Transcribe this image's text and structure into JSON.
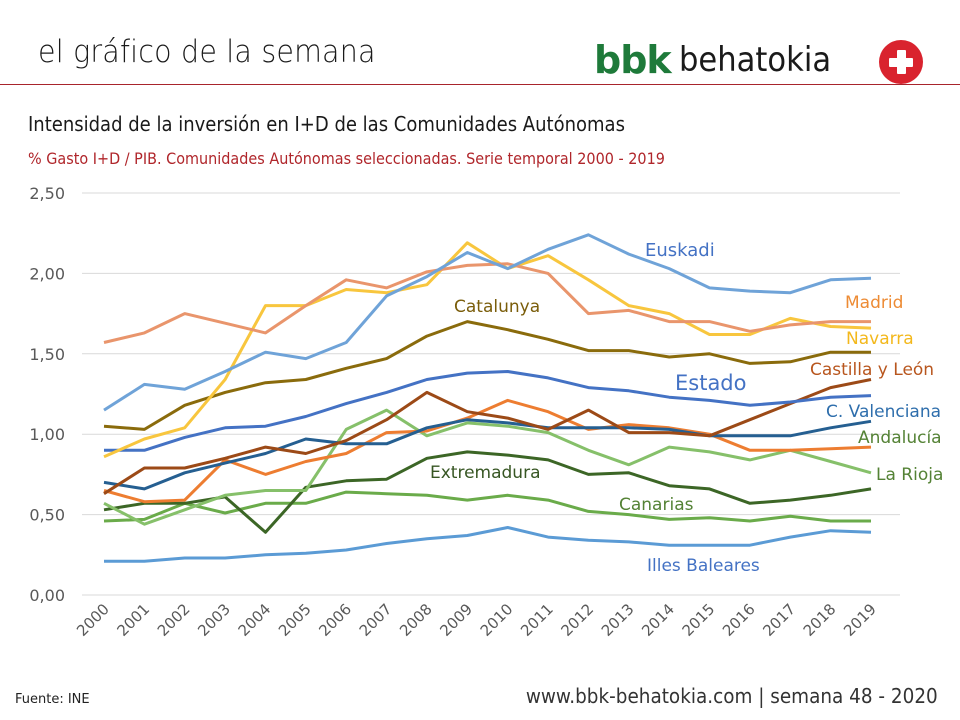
{
  "header": {
    "title": "el gráfico de la semana",
    "logo_bbk": "bbk",
    "logo_name": "behatokia",
    "logo_icon": "plus-cross-icon"
  },
  "footer": {
    "source": "Fuente:  INE",
    "web": "www.bbk-behatokia.com | semana 48 - 2020"
  },
  "chart_data": {
    "type": "line",
    "title": "Intensidad de la inversión en I+D de las Comunidades Autónomas",
    "subtitle": "% Gasto I+D / PIB. Comunidades Autónomas seleccionadas. Serie temporal 2000 - 2019",
    "xlabel": "",
    "ylabel": "",
    "x": [
      "2000",
      "2001",
      "2002",
      "2003",
      "2004",
      "2005",
      "2006",
      "2007",
      "2008",
      "2009",
      "2010",
      "2011",
      "2012",
      "2013",
      "2014",
      "2015",
      "2016",
      "2017",
      "2018",
      "2019"
    ],
    "ylim": [
      0,
      2.5
    ],
    "yticks": [
      "0,00",
      "0,50",
      "1,00",
      "1,50",
      "2,00",
      "2,50"
    ],
    "ytick_values": [
      0,
      0.5,
      1,
      1.5,
      2,
      2.5
    ],
    "grid": true,
    "legend": "inline labels",
    "series": [
      {
        "name": "Euskadi",
        "color": "#6fa3d8",
        "label_color": "#4472c4",
        "values": [
          1.15,
          1.31,
          1.28,
          1.39,
          1.51,
          1.47,
          1.57,
          1.86,
          1.98,
          2.13,
          2.03,
          2.15,
          2.24,
          2.12,
          2.03,
          1.91,
          1.89,
          1.88,
          1.96,
          1.97
        ]
      },
      {
        "name": "Madrid",
        "color": "#e9956c",
        "label_color": "#ed8b34",
        "values": [
          1.57,
          1.63,
          1.75,
          1.69,
          1.63,
          1.8,
          1.96,
          1.91,
          2.01,
          2.05,
          2.06,
          2.0,
          1.75,
          1.77,
          1.7,
          1.7,
          1.64,
          1.68,
          1.7,
          1.7
        ]
      },
      {
        "name": "Navarra",
        "color": "#f8c63e",
        "label_color": "#f3b81c",
        "values": [
          0.86,
          0.97,
          1.04,
          1.34,
          1.8,
          1.8,
          1.9,
          1.88,
          1.93,
          2.19,
          2.03,
          2.11,
          1.96,
          1.8,
          1.75,
          1.62,
          1.62,
          1.72,
          1.67,
          1.66
        ]
      },
      {
        "name": "Catalunya",
        "color": "#8a6b0c",
        "label_color": "#7a5d0a",
        "values": [
          1.05,
          1.03,
          1.18,
          1.26,
          1.32,
          1.34,
          1.41,
          1.47,
          1.61,
          1.7,
          1.65,
          1.59,
          1.52,
          1.52,
          1.48,
          1.5,
          1.44,
          1.45,
          1.51,
          1.51
        ]
      },
      {
        "name": "Estado",
        "color": "#4472c4",
        "label_color": "#4472c4",
        "values": [
          0.9,
          0.9,
          0.98,
          1.04,
          1.05,
          1.11,
          1.19,
          1.26,
          1.34,
          1.38,
          1.39,
          1.35,
          1.29,
          1.27,
          1.23,
          1.21,
          1.18,
          1.2,
          1.23,
          1.24
        ]
      },
      {
        "name": "Castilla y León",
        "color": "#9c4a17",
        "label_color": "#b8561e",
        "values": [
          0.63,
          0.79,
          0.79,
          0.85,
          0.92,
          0.88,
          0.96,
          1.09,
          1.26,
          1.14,
          1.1,
          1.03,
          1.15,
          1.01,
          1.01,
          0.99,
          1.09,
          1.19,
          1.29,
          1.34
        ]
      },
      {
        "name": "C. Valenciana",
        "color": "#255f91",
        "label_color": "#2e6eac",
        "values": [
          0.7,
          0.66,
          0.76,
          0.82,
          0.88,
          0.97,
          0.94,
          0.94,
          1.04,
          1.09,
          1.07,
          1.04,
          1.04,
          1.04,
          1.03,
          0.99,
          0.99,
          0.99,
          1.04,
          1.08
        ]
      },
      {
        "name": "Andalucía",
        "color": "#ed7d31",
        "label_color": "#548235",
        "values": [
          0.65,
          0.58,
          0.59,
          0.84,
          0.75,
          0.83,
          0.88,
          1.01,
          1.02,
          1.1,
          1.21,
          1.14,
          1.03,
          1.06,
          1.04,
          1.0,
          0.9,
          0.9,
          0.91,
          0.92
        ]
      },
      {
        "name": "La Rioja",
        "color": "#86c06a",
        "label_color": "#548235",
        "values": [
          0.57,
          0.44,
          0.53,
          0.62,
          0.65,
          0.65,
          1.03,
          1.15,
          0.99,
          1.07,
          1.05,
          1.01,
          0.9,
          0.81,
          0.92,
          0.89,
          0.84,
          0.9,
          0.83,
          0.76
        ]
      },
      {
        "name": "Extremadura",
        "color": "#3c6626",
        "label_color": "#375623",
        "values": [
          0.53,
          0.57,
          0.57,
          0.61,
          0.39,
          0.67,
          0.71,
          0.72,
          0.85,
          0.89,
          0.87,
          0.84,
          0.75,
          0.76,
          0.68,
          0.66,
          0.57,
          0.59,
          0.62,
          0.66
        ]
      },
      {
        "name": "Canarias",
        "color": "#6aab4a",
        "label_color": "#548235",
        "values": [
          0.46,
          0.47,
          0.57,
          0.51,
          0.57,
          0.57,
          0.64,
          0.63,
          0.62,
          0.59,
          0.62,
          0.59,
          0.52,
          0.5,
          0.47,
          0.48,
          0.46,
          0.49,
          0.46,
          0.46
        ]
      },
      {
        "name": "Illes Baleares",
        "color": "#5b9bd5",
        "label_color": "#4472c4",
        "values": [
          0.21,
          0.21,
          0.23,
          0.23,
          0.25,
          0.26,
          0.28,
          0.32,
          0.35,
          0.37,
          0.42,
          0.36,
          0.34,
          0.33,
          0.31,
          0.31,
          0.31,
          0.36,
          0.4,
          0.39
        ]
      }
    ]
  }
}
